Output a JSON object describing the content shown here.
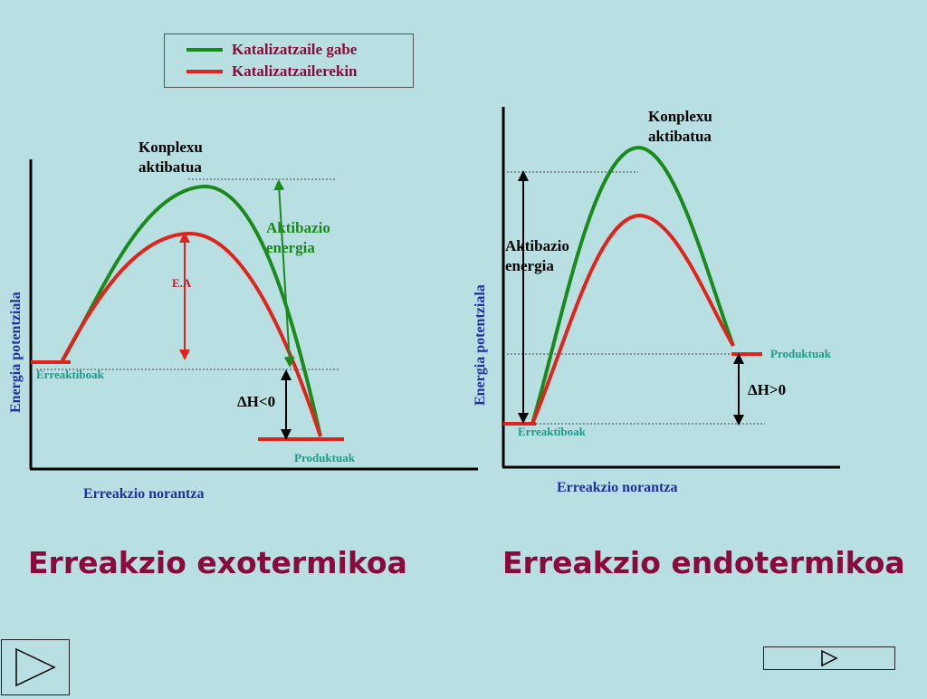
{
  "legend": {
    "items": [
      {
        "label": "Katalizatzaile gabe",
        "color": "#1a8a1a"
      },
      {
        "label": "Katalizatzailerekin",
        "color": "#e0241c"
      }
    ]
  },
  "exo": {
    "complex_label_1": "Konplexu",
    "complex_label_2": "aktibatua",
    "activation_label_1": "Aktibazio",
    "activation_label_2": "energia",
    "ea_label": "E.A",
    "reactants_label": "Erreaktiboak",
    "products_label": "Produktuak",
    "enthalpy_label": "ΔH<0",
    "y_axis_label": "Energia potentziala",
    "x_axis_label": "Erreakzio norantza",
    "title": "Erreakzio exotermikoa"
  },
  "endo": {
    "complex_label_1": "Konplexu",
    "complex_label_2": "aktibatua",
    "activation_label_1": "Aktibazio",
    "activation_label_2": "energia",
    "reactants_label": "Erreaktiboak",
    "products_label": "Produktuak",
    "enthalpy_label": "ΔH>0",
    "y_axis_label": "Energia potentziala",
    "x_axis_label": "Erreakzio norantza",
    "title": "Erreakzio endotermikoa"
  },
  "colors": {
    "background": "#b8dfe2",
    "uncatalyzed": "#1a8a1a",
    "catalyzed": "#e0241c",
    "title": "#8b0a3c",
    "axis_label": "#2030a0"
  }
}
